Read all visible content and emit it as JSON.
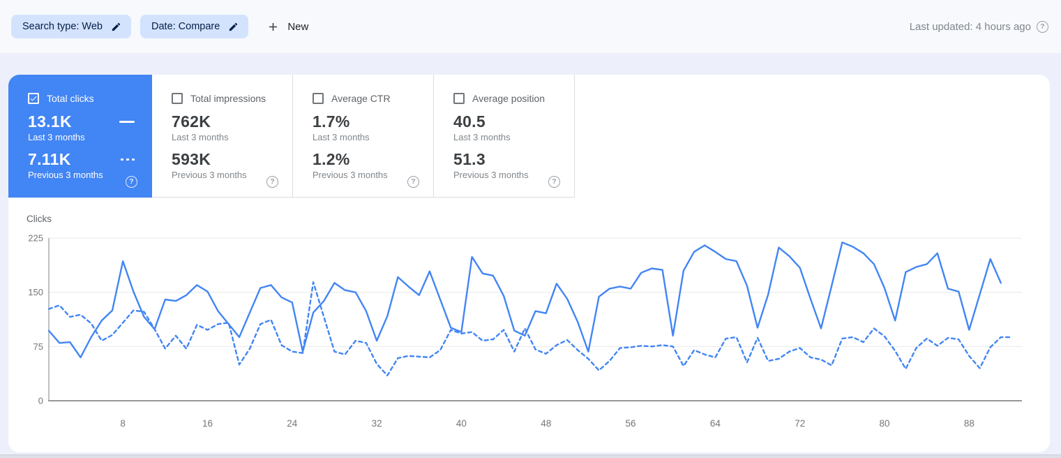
{
  "header": {
    "chips": [
      {
        "label": "Search type: Web"
      },
      {
        "label": "Date: Compare"
      }
    ],
    "new_button": {
      "label": "New"
    },
    "last_updated": "Last updated: 4 hours ago"
  },
  "metric_cards": [
    {
      "id": "total-clicks",
      "label": "Total clicks",
      "checked": true,
      "selected": true,
      "value1": "13.1K",
      "period1": "Last 3 months",
      "value2": "7.11K",
      "period2": "Previous 3 months",
      "show_legend": true
    },
    {
      "id": "total-impressions",
      "label": "Total impressions",
      "checked": false,
      "selected": false,
      "value1": "762K",
      "period1": "Last 3 months",
      "value2": "593K",
      "period2": "Previous 3 months",
      "show_legend": false
    },
    {
      "id": "average-ctr",
      "label": "Average CTR",
      "checked": false,
      "selected": false,
      "value1": "1.7%",
      "period1": "Last 3 months",
      "value2": "1.2%",
      "period2": "Previous 3 months",
      "show_legend": false
    },
    {
      "id": "average-position",
      "label": "Average position",
      "checked": false,
      "selected": false,
      "value1": "40.5",
      "period1": "Last 3 months",
      "value2": "51.3",
      "period2": "Previous 3 months",
      "show_legend": false
    }
  ],
  "chart_data": {
    "type": "line",
    "title": "",
    "ylabel": "Clicks",
    "xlabel": "",
    "ylim": [
      0,
      225
    ],
    "yticks": [
      0,
      75,
      150,
      225
    ],
    "xticks": [
      8,
      16,
      24,
      32,
      40,
      48,
      56,
      64,
      72,
      80,
      88
    ],
    "x_unit": "day index within 3-month period",
    "grid": "horizontal",
    "legend_position": "in selected metric card",
    "line_color": "#4285f4",
    "series": [
      {
        "name": "Last 3 months",
        "style": "solid",
        "values": [
          97,
          80,
          81,
          60,
          88,
          111,
          125,
          193,
          151,
          116,
          99,
          140,
          138,
          146,
          160,
          151,
          124,
          106,
          88,
          122,
          156,
          160,
          143,
          136,
          68,
          122,
          138,
          163,
          153,
          150,
          124,
          83,
          117,
          171,
          158,
          146,
          179,
          140,
          101,
          95,
          199,
          176,
          173,
          145,
          97,
          90,
          124,
          121,
          162,
          141,
          109,
          68,
          144,
          155,
          158,
          155,
          177,
          183,
          181,
          90,
          180,
          206,
          215,
          206,
          196,
          193,
          159,
          101,
          147,
          212,
          200,
          184,
          141,
          100,
          159,
          219,
          213,
          204,
          189,
          156,
          111,
          178,
          185,
          189,
          204,
          155,
          151,
          98,
          147,
          196,
          163
        ]
      },
      {
        "name": "Previous 3 months",
        "style": "dashed",
        "values": [
          127,
          132,
          116,
          119,
          107,
          83,
          91,
          108,
          125,
          123,
          99,
          72,
          90,
          72,
          105,
          98,
          106,
          108,
          50,
          72,
          106,
          112,
          77,
          68,
          66,
          164,
          116,
          68,
          64,
          83,
          80,
          51,
          35,
          59,
          62,
          61,
          60,
          70,
          98,
          93,
          95,
          83,
          85,
          98,
          68,
          100,
          71,
          65,
          77,
          84,
          70,
          58,
          42,
          55,
          73,
          74,
          76,
          75,
          77,
          75,
          48,
          70,
          64,
          60,
          86,
          88,
          53,
          87,
          55,
          58,
          68,
          73,
          60,
          57,
          49,
          86,
          88,
          81,
          100,
          89,
          69,
          44,
          73,
          86,
          76,
          87,
          85,
          62,
          45,
          74,
          88,
          88
        ]
      }
    ]
  },
  "colors": {
    "accent_blue": "#4285f4",
    "chip_bg": "#d3e3fd",
    "chip_text": "#041e49",
    "page_bg": "#edf0fa",
    "topbar_bg": "#f7f9fd",
    "panel_bg": "#ffffff",
    "card_border": "#dadce0",
    "label_gray": "#5f6368",
    "value_gray": "#3c4043",
    "sub_gray": "#80868b",
    "axis_gray": "#757575",
    "gridline": "#e8e8e8"
  }
}
